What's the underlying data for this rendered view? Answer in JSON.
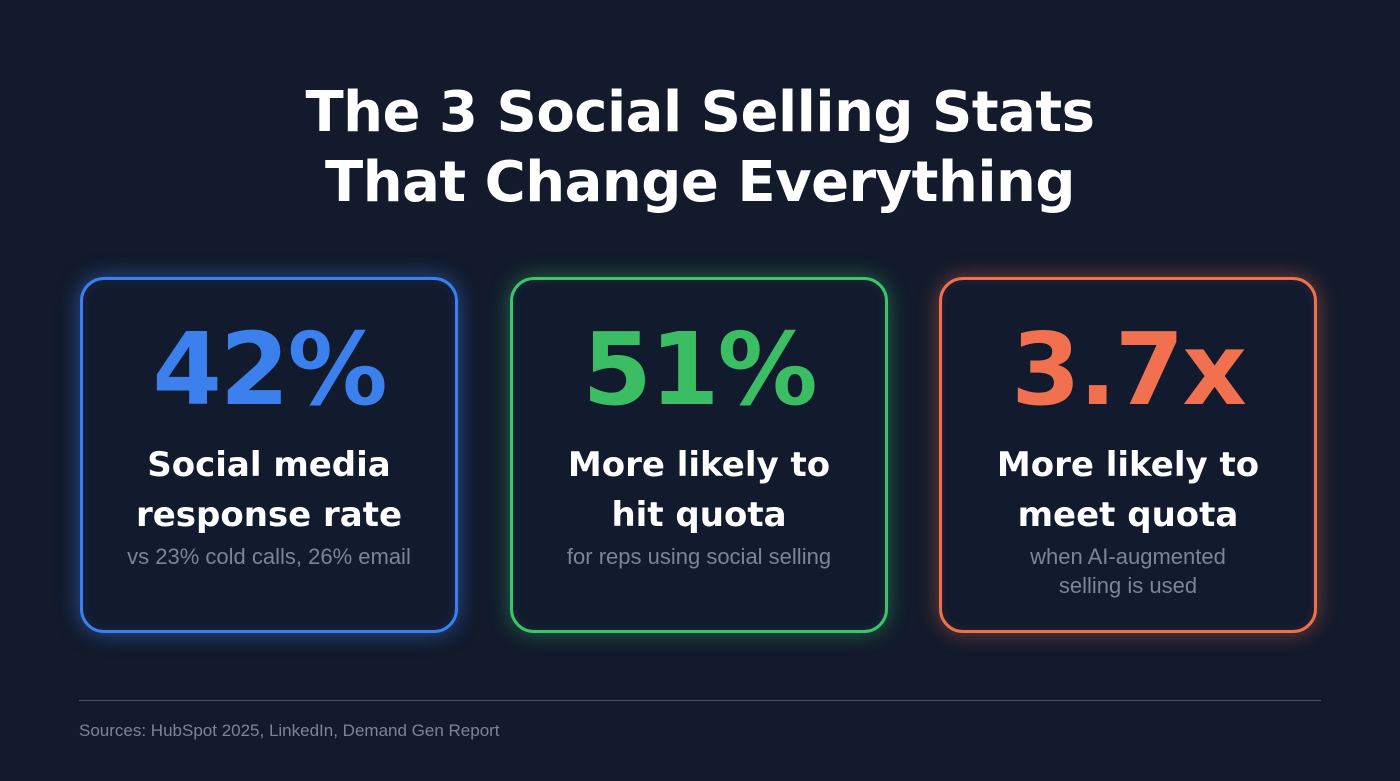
{
  "title": {
    "line1": "The 3 Social Selling Stats",
    "line2": "That Change Everything"
  },
  "cards": [
    {
      "value": "42%",
      "label_line1": "Social media",
      "label_line2": "response rate",
      "sub_line1": "vs 23% cold calls, 26% email",
      "sub_line2": "",
      "color": "#3b80ec"
    },
    {
      "value": "51%",
      "label_line1": "More likely to",
      "label_line2": "hit quota",
      "sub_line1": "for reps using social selling",
      "sub_line2": "",
      "color": "#3bbd64"
    },
    {
      "value": "3.7x",
      "label_line1": "More likely to",
      "label_line2": "meet quota",
      "sub_line1": "when AI-augmented",
      "sub_line2": "selling is used",
      "color": "#f0704f"
    }
  ],
  "footer": {
    "sources": "Sources: HubSpot 2025, LinkedIn, Demand Gen Report"
  }
}
